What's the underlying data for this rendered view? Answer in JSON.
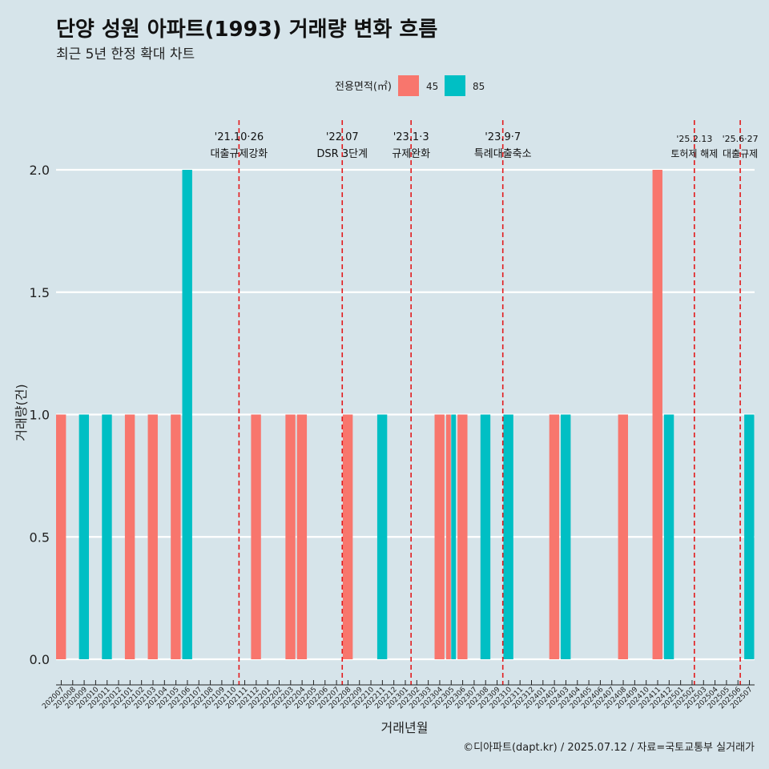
{
  "title": "단양 성원 아파트(1993) 거래량 변화 흐름",
  "subtitle": "최근 5년 한정 확대 차트",
  "caption": "©디아파트(dapt.kr) / 2025.07.12 / 자료=국토교통부 실거래가",
  "colors": {
    "background": "#d6e4ea",
    "series_45": "#f8766d",
    "series_85": "#00bfc4",
    "event_line": "#e31a1c",
    "grid": "#ffffff"
  },
  "chart_data": {
    "type": "bar",
    "xlabel": "거래년월",
    "ylabel": "거래량(건)",
    "ylim": [
      0,
      2.1
    ],
    "yticks": [
      "0.0",
      "0.5",
      "1.0",
      "1.5",
      "2.0"
    ],
    "legend": {
      "title": "전용면적(㎡)",
      "position": "top",
      "entries": [
        "45",
        "85"
      ]
    },
    "categories": [
      "202007",
      "202008",
      "202009",
      "202010",
      "202011",
      "202012",
      "202101",
      "202102",
      "202103",
      "202104",
      "202105",
      "202106",
      "202107",
      "202108",
      "202109",
      "202110",
      "202111",
      "202112",
      "202201",
      "202202",
      "202203",
      "202204",
      "202205",
      "202206",
      "202207",
      "202208",
      "202209",
      "202210",
      "202211",
      "202212",
      "202301",
      "202302",
      "202303",
      "202304",
      "202305",
      "202306",
      "202307",
      "202308",
      "202309",
      "202310",
      "202311",
      "202312",
      "202401",
      "202402",
      "202403",
      "202404",
      "202405",
      "202406",
      "202407",
      "202408",
      "202409",
      "202410",
      "202411",
      "202412",
      "202501",
      "202502",
      "202503",
      "202504",
      "202505",
      "202506",
      "202507"
    ],
    "series": [
      {
        "name": "45",
        "values": [
          1,
          0,
          0,
          0,
          0,
          0,
          1,
          0,
          1,
          0,
          1,
          0,
          0,
          0,
          0,
          0,
          0,
          1,
          0,
          0,
          1,
          1,
          0,
          0,
          0,
          1,
          0,
          0,
          0,
          0,
          0,
          0,
          0,
          1,
          1,
          1,
          0,
          0,
          0,
          0,
          0,
          0,
          0,
          1,
          0,
          0,
          0,
          0,
          0,
          1,
          0,
          0,
          2,
          0,
          0,
          0,
          0,
          0,
          0,
          0,
          0
        ]
      },
      {
        "name": "85",
        "values": [
          0,
          0,
          1,
          0,
          1,
          0,
          0,
          0,
          0,
          0,
          0,
          2,
          0,
          0,
          0,
          0,
          0,
          0,
          0,
          0,
          0,
          0,
          0,
          0,
          0,
          0,
          0,
          0,
          1,
          0,
          0,
          0,
          0,
          0,
          1,
          0,
          0,
          1,
          0,
          1,
          0,
          0,
          0,
          0,
          1,
          0,
          0,
          0,
          0,
          0,
          0,
          0,
          0,
          1,
          0,
          0,
          0,
          0,
          0,
          0,
          1
        ]
      }
    ],
    "annotations": [
      {
        "at": 15.5,
        "date": "'21.10·26",
        "label": "대출규제강화"
      },
      {
        "at": 24.5,
        "date": "'22.07",
        "label": "DSR 3단계"
      },
      {
        "at": 30.5,
        "date": "'23.1·3",
        "label": "규제완화"
      },
      {
        "at": 38.5,
        "date": "'23.9·7",
        "label": "특례대출축소"
      },
      {
        "at": 55.2,
        "date": "'25.2.13",
        "label": "토허제 해제"
      },
      {
        "at": 59.2,
        "date": "'25.6·27",
        "label": "대출규제"
      }
    ]
  }
}
